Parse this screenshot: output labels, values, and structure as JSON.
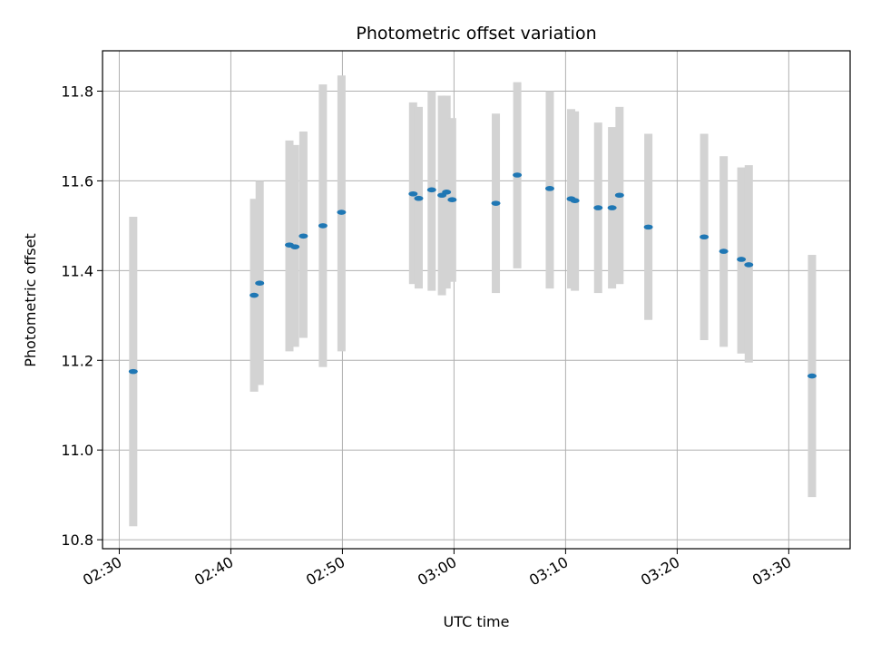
{
  "chart_data": {
    "type": "scatter",
    "title": "Photometric offset variation",
    "xlabel": "UTC time",
    "ylabel": "Photometric offset",
    "x_unit": "UTC time (HH:MM)",
    "xlim": [
      "02:28:30",
      "03:35:30"
    ],
    "ylim": [
      10.78,
      11.89
    ],
    "x_ticks": [
      "02:30",
      "02:40",
      "02:50",
      "03:00",
      "03:10",
      "03:20",
      "03:30"
    ],
    "y_ticks": [
      10.8,
      11.0,
      11.2,
      11.4,
      11.6,
      11.8
    ],
    "y_tick_labels": [
      "10.8",
      "11.0",
      "11.2",
      "11.4",
      "11.6",
      "11.8"
    ],
    "grid": true,
    "colors": {
      "points": "#1f77b4",
      "error_bars": "#d3d3d3",
      "grid": "#b0b0b0"
    },
    "series": [
      {
        "points": [
          {
            "x": "02:31:15",
            "y": 11.175,
            "low": 10.83,
            "high": 11.52
          },
          {
            "x": "02:42:05",
            "y": 11.345,
            "low": 11.13,
            "high": 11.56
          },
          {
            "x": "02:42:35",
            "y": 11.372,
            "low": 11.145,
            "high": 11.6
          },
          {
            "x": "02:45:15",
            "y": 11.457,
            "low": 11.22,
            "high": 11.69
          },
          {
            "x": "02:45:45",
            "y": 11.453,
            "low": 11.23,
            "high": 11.68
          },
          {
            "x": "02:46:30",
            "y": 11.477,
            "low": 11.25,
            "high": 11.71
          },
          {
            "x": "02:48:15",
            "y": 11.5,
            "low": 11.185,
            "high": 11.815
          },
          {
            "x": "02:49:55",
            "y": 11.53,
            "low": 11.22,
            "high": 11.835
          },
          {
            "x": "02:56:20",
            "y": 11.571,
            "low": 11.37,
            "high": 11.775
          },
          {
            "x": "02:56:50",
            "y": 11.561,
            "low": 11.36,
            "high": 11.765
          },
          {
            "x": "02:58:00",
            "y": 11.58,
            "low": 11.355,
            "high": 11.8
          },
          {
            "x": "02:58:55",
            "y": 11.568,
            "low": 11.345,
            "high": 11.79
          },
          {
            "x": "02:59:20",
            "y": 11.575,
            "low": 11.36,
            "high": 11.79
          },
          {
            "x": "02:59:50",
            "y": 11.558,
            "low": 11.375,
            "high": 11.74
          },
          {
            "x": "03:03:45",
            "y": 11.55,
            "low": 11.35,
            "high": 11.75
          },
          {
            "x": "03:05:40",
            "y": 11.613,
            "low": 11.405,
            "high": 11.82
          },
          {
            "x": "03:08:35",
            "y": 11.583,
            "low": 11.36,
            "high": 11.8
          },
          {
            "x": "03:10:30",
            "y": 11.56,
            "low": 11.36,
            "high": 11.76
          },
          {
            "x": "03:10:50",
            "y": 11.556,
            "low": 11.355,
            "high": 11.755
          },
          {
            "x": "03:12:55",
            "y": 11.54,
            "low": 11.35,
            "high": 11.73
          },
          {
            "x": "03:14:10",
            "y": 11.54,
            "low": 11.36,
            "high": 11.72
          },
          {
            "x": "03:14:50",
            "y": 11.568,
            "low": 11.37,
            "high": 11.765
          },
          {
            "x": "03:17:25",
            "y": 11.497,
            "low": 11.29,
            "high": 11.705
          },
          {
            "x": "03:22:25",
            "y": 11.475,
            "low": 11.245,
            "high": 11.705
          },
          {
            "x": "03:24:10",
            "y": 11.443,
            "low": 11.23,
            "high": 11.655
          },
          {
            "x": "03:25:45",
            "y": 11.425,
            "low": 11.215,
            "high": 11.63
          },
          {
            "x": "03:26:25",
            "y": 11.413,
            "low": 11.195,
            "high": 11.635
          },
          {
            "x": "03:32:05",
            "y": 11.165,
            "low": 10.895,
            "high": 11.435
          }
        ]
      }
    ]
  }
}
